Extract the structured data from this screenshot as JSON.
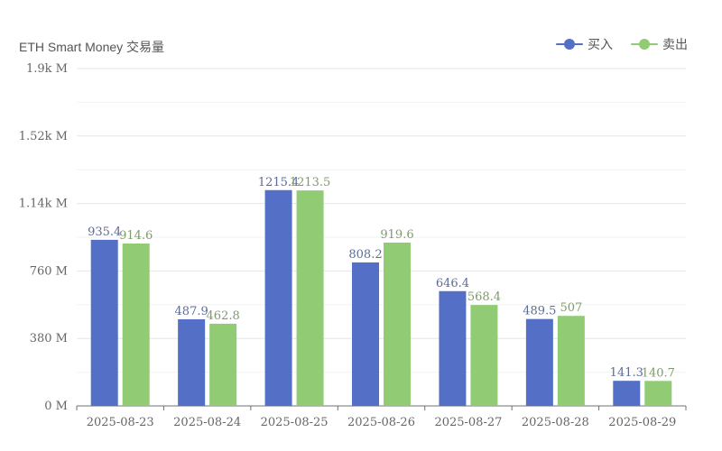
{
  "chart_data": {
    "type": "bar",
    "title": "ETH Smart Money 交易量",
    "categories": [
      "2025-08-23",
      "2025-08-24",
      "2025-08-25",
      "2025-08-26",
      "2025-08-27",
      "2025-08-28",
      "2025-08-29"
    ],
    "series": [
      {
        "name": "买入",
        "color": "#5470c6",
        "label_color": "#5d6c96",
        "values": [
          935.4,
          487.9,
          1215.4,
          808.2,
          646.4,
          489.5,
          141.3
        ],
        "value_labels": [
          "935.4",
          "487.9",
          "1215.4",
          "808.2",
          "646.4",
          "489.5",
          "141.3"
        ]
      },
      {
        "name": "卖出",
        "color": "#91cc75",
        "label_color": "#7f9a6e",
        "values": [
          914.6,
          462.8,
          1213.5,
          919.6,
          568.4,
          507,
          140.7
        ],
        "value_labels": [
          "914.6",
          "462.8",
          "1213.5",
          "919.6",
          "568.4",
          "507",
          "140.7"
        ]
      }
    ],
    "y_unit": "M",
    "ylim": [
      0,
      1900
    ],
    "y_ticks": [
      0,
      380,
      760,
      1140,
      1520,
      1900
    ],
    "y_tick_labels": [
      "0 M",
      "380 M",
      "760 M",
      "1.14k M",
      "1.52k M",
      "1.9k M"
    ],
    "grid": true,
    "legend_position": "top-right",
    "xlabel": "",
    "ylabel": ""
  }
}
